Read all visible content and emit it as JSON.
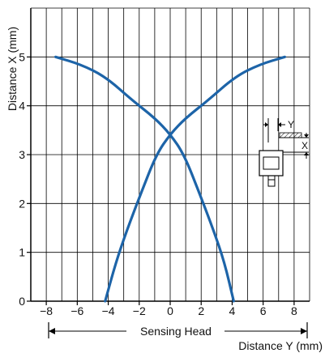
{
  "chart_data": {
    "type": "line",
    "title": "",
    "xlabel": "Distance Y (mm)",
    "ylabel": "Distance X (mm)",
    "footer_label": "Sensing Head",
    "xlim": [
      -9,
      9
    ],
    "ylim": [
      0,
      6
    ],
    "x_ticks": [
      -8,
      -6,
      -4,
      -2,
      0,
      2,
      4,
      6,
      8
    ],
    "y_ticks": [
      0,
      1,
      2,
      3,
      4,
      5
    ],
    "grid": true,
    "series": [
      {
        "color": "#1d64a8",
        "points": [
          [
            -7.4,
            5.0
          ],
          [
            -5.8,
            4.85
          ],
          [
            -4.2,
            4.6
          ],
          [
            -2.4,
            4.1
          ],
          [
            -1.0,
            3.75
          ],
          [
            0.0,
            3.42
          ],
          [
            0.9,
            3.0
          ],
          [
            1.9,
            2.2
          ],
          [
            2.8,
            1.45
          ],
          [
            3.5,
            0.8
          ],
          [
            4.1,
            0.0
          ]
        ]
      },
      {
        "color": "#1d64a8",
        "points": [
          [
            -4.2,
            0.0
          ],
          [
            -3.5,
            0.8
          ],
          [
            -2.8,
            1.45
          ],
          [
            -1.9,
            2.2
          ],
          [
            -0.9,
            3.0
          ],
          [
            0.0,
            3.42
          ],
          [
            1.0,
            3.75
          ],
          [
            2.4,
            4.1
          ],
          [
            4.2,
            4.6
          ],
          [
            5.8,
            4.85
          ],
          [
            7.4,
            5.0
          ]
        ]
      }
    ],
    "inset_labels": {
      "y": "Y",
      "x": "X"
    }
  },
  "colors": {
    "grid": "#000000",
    "axis": "#000000",
    "curve": "#1d64a8"
  }
}
